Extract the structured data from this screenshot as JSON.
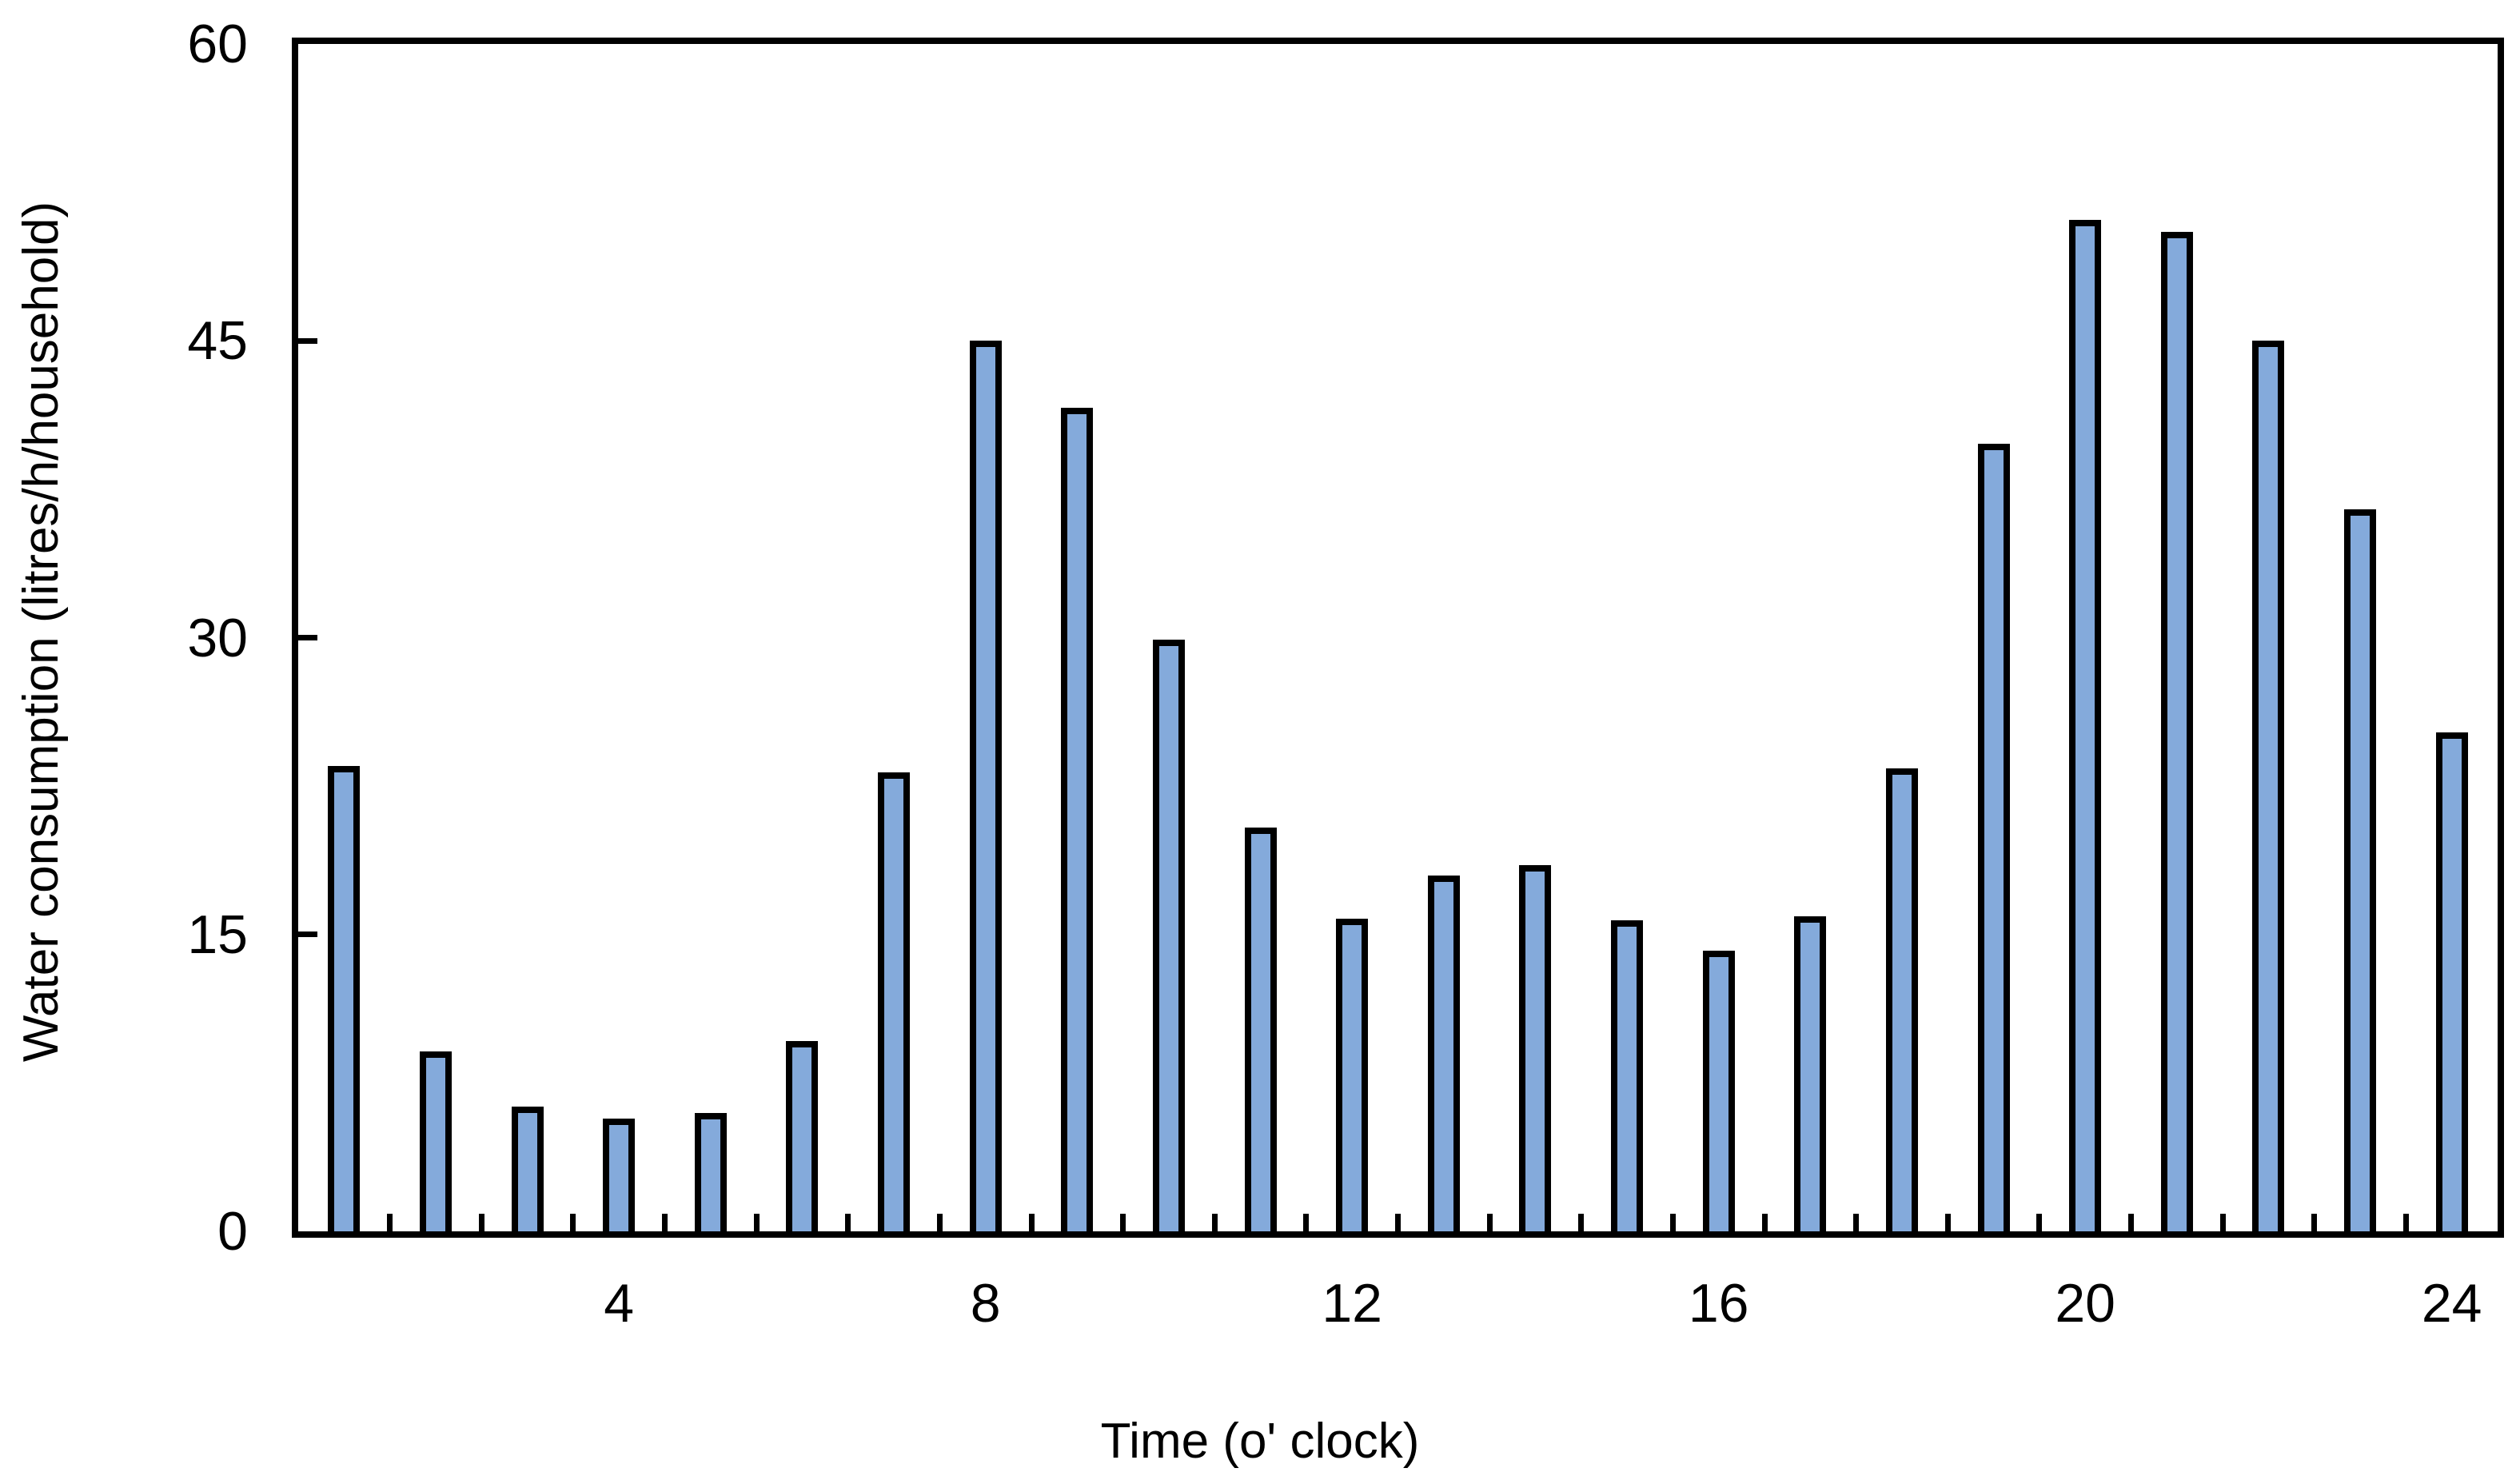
{
  "chart_data": {
    "type": "bar",
    "title": "",
    "xlabel": "Time (o' clock)",
    "ylabel": "Water consumption (litres/h/household)",
    "x": [
      1,
      2,
      3,
      4,
      5,
      6,
      7,
      8,
      9,
      10,
      11,
      12,
      13,
      14,
      15,
      16,
      17,
      18,
      19,
      20,
      21,
      22,
      23,
      24
    ],
    "values": [
      23.5,
      9.1,
      6.3,
      5.7,
      6.0,
      9.6,
      23.2,
      45.0,
      41.6,
      29.9,
      20.4,
      15.8,
      18.0,
      18.5,
      15.7,
      14.2,
      15.9,
      23.4,
      39.8,
      51.1,
      50.5,
      45.0,
      36.5,
      25.2
    ],
    "x_tick_labels": [
      "4",
      "8",
      "12",
      "16",
      "20",
      "24"
    ],
    "x_tick_positions": [
      4,
      8,
      12,
      16,
      20,
      24
    ],
    "y_ticks": [
      "0",
      "15",
      "30",
      "45",
      "60"
    ],
    "y_tick_values": [
      0,
      15,
      30,
      45,
      60
    ],
    "ylim": [
      0,
      60
    ],
    "grid": "off",
    "legend": "none",
    "colors": {
      "bar_fill": "#84AADB",
      "bar_border": "#000000",
      "axis": "#000000",
      "text": "#000000",
      "background": "#FFFFFF"
    }
  }
}
